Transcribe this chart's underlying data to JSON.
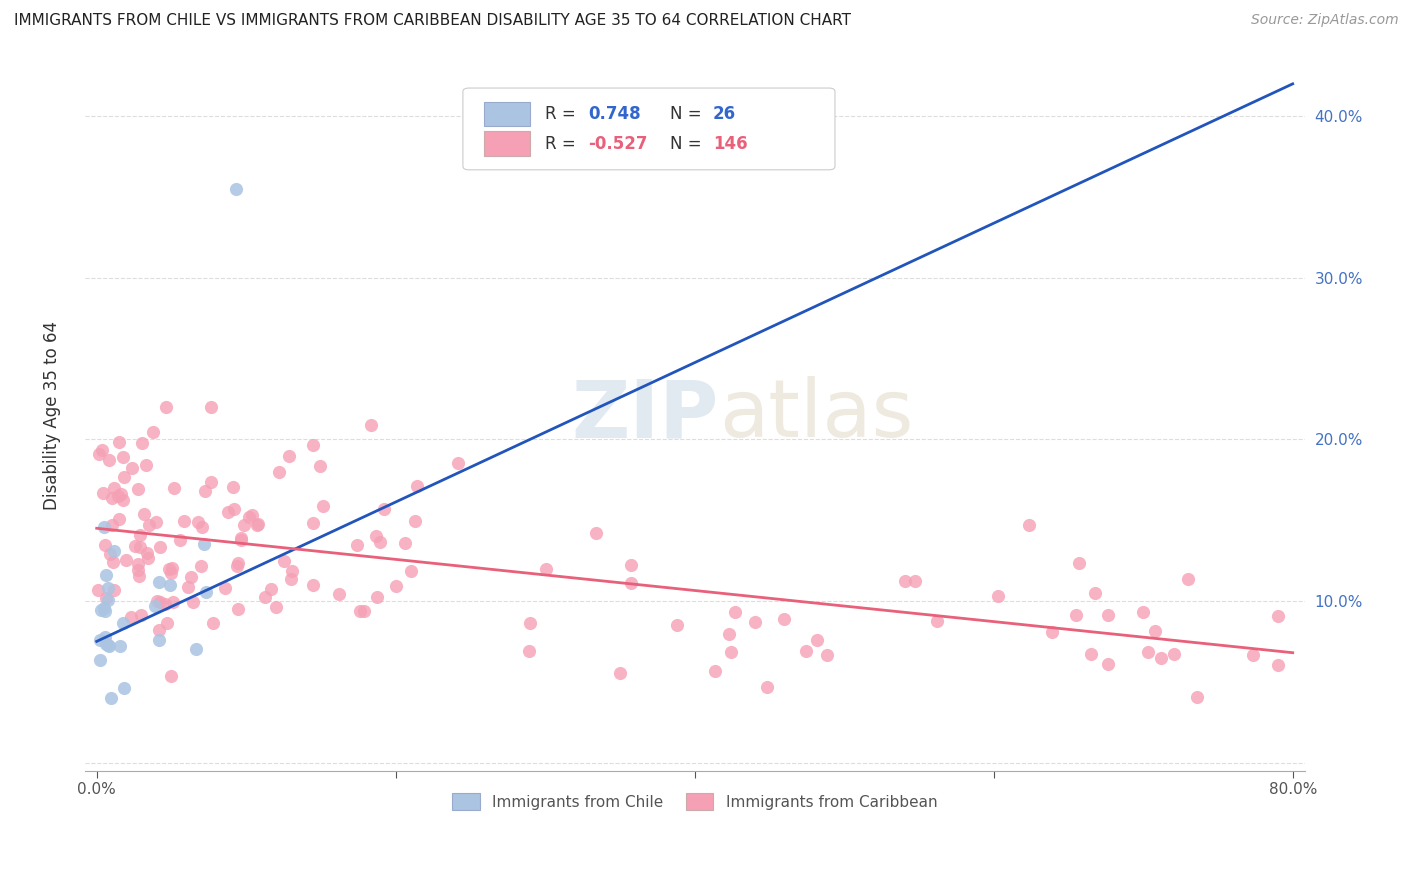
{
  "title": "IMMIGRANTS FROM CHILE VS IMMIGRANTS FROM CARIBBEAN DISABILITY AGE 35 TO 64 CORRELATION CHART",
  "source": "Source: ZipAtlas.com",
  "ylabel": "Disability Age 35 to 64",
  "xlim": [
    0.0,
    0.8
  ],
  "ylim": [
    0.0,
    0.42
  ],
  "chile_R": 0.748,
  "chile_N": 26,
  "caribbean_R": -0.527,
  "caribbean_N": 146,
  "chile_color": "#aac4e2",
  "chile_line_color": "#2255bb",
  "caribbean_color": "#f5a0b5",
  "caribbean_line_color": "#e8607a",
  "background_color": "#ffffff",
  "grid_color": "#dddddd",
  "legend_chile_label": "Immigrants from Chile",
  "legend_caribbean_label": "Immigrants from Caribbean",
  "chile_line_x0": 0.0,
  "chile_line_y0": 0.075,
  "chile_line_x1": 0.8,
  "chile_line_y1": 0.42,
  "carib_line_x0": 0.0,
  "carib_line_y0": 0.145,
  "carib_line_x1": 0.8,
  "carib_line_y1": 0.068
}
